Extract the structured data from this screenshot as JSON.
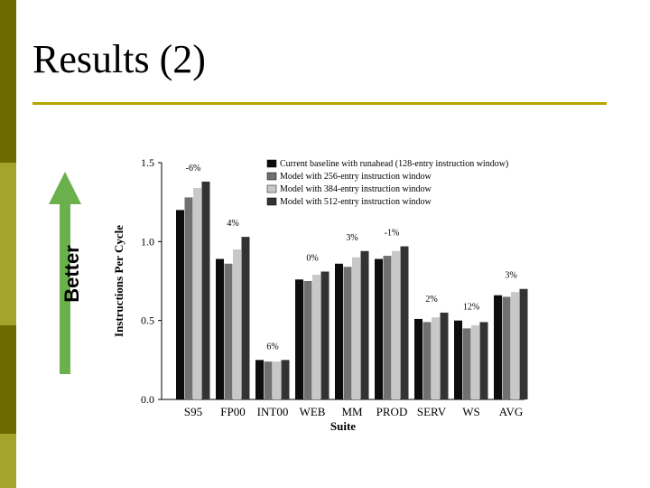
{
  "slide": {
    "title": "Results (2)",
    "better_label": "Better",
    "sidebar_colors": [
      "#6b6b00",
      "#a4a42c",
      "#6b6b00",
      "#a4a42c"
    ],
    "rule_color": "#b5a600",
    "arrow_color": "#6ab04c"
  },
  "chart_data": {
    "type": "bar",
    "xlabel": "Suite",
    "ylabel": "Instructions Per Cycle",
    "ylim": [
      0,
      1.5
    ],
    "yticks": [
      "0.0",
      "0.5",
      "1.0",
      "1.5"
    ],
    "categories": [
      "S95",
      "FP00",
      "INT00",
      "WEB",
      "MM",
      "PROD",
      "SERV",
      "WS",
      "AVG"
    ],
    "legend_position": "top-right",
    "series": [
      {
        "name": "Current baseline with runahead (128-entry instruction window)",
        "color": "#0d0d0d",
        "values": [
          1.2,
          0.89,
          0.25,
          0.76,
          0.86,
          0.89,
          0.51,
          0.5,
          0.66
        ]
      },
      {
        "name": "Model with 256-entry instruction window",
        "color": "#707070",
        "values": [
          1.28,
          0.86,
          0.24,
          0.75,
          0.84,
          0.91,
          0.49,
          0.45,
          0.65
        ]
      },
      {
        "name": "Model with 384-entry instruction window",
        "color": "#c8c8c8",
        "values": [
          1.34,
          0.95,
          0.24,
          0.79,
          0.9,
          0.94,
          0.52,
          0.47,
          0.68
        ]
      },
      {
        "name": "Model with 512-entry instruction window",
        "color": "#333333",
        "values": [
          1.38,
          1.03,
          0.25,
          0.81,
          0.94,
          0.97,
          0.55,
          0.49,
          0.7
        ]
      }
    ],
    "annotations": [
      "-6%",
      "4%",
      "6%",
      "0%",
      "3%",
      "-1%",
      "2%",
      "12%",
      "3%"
    ]
  }
}
